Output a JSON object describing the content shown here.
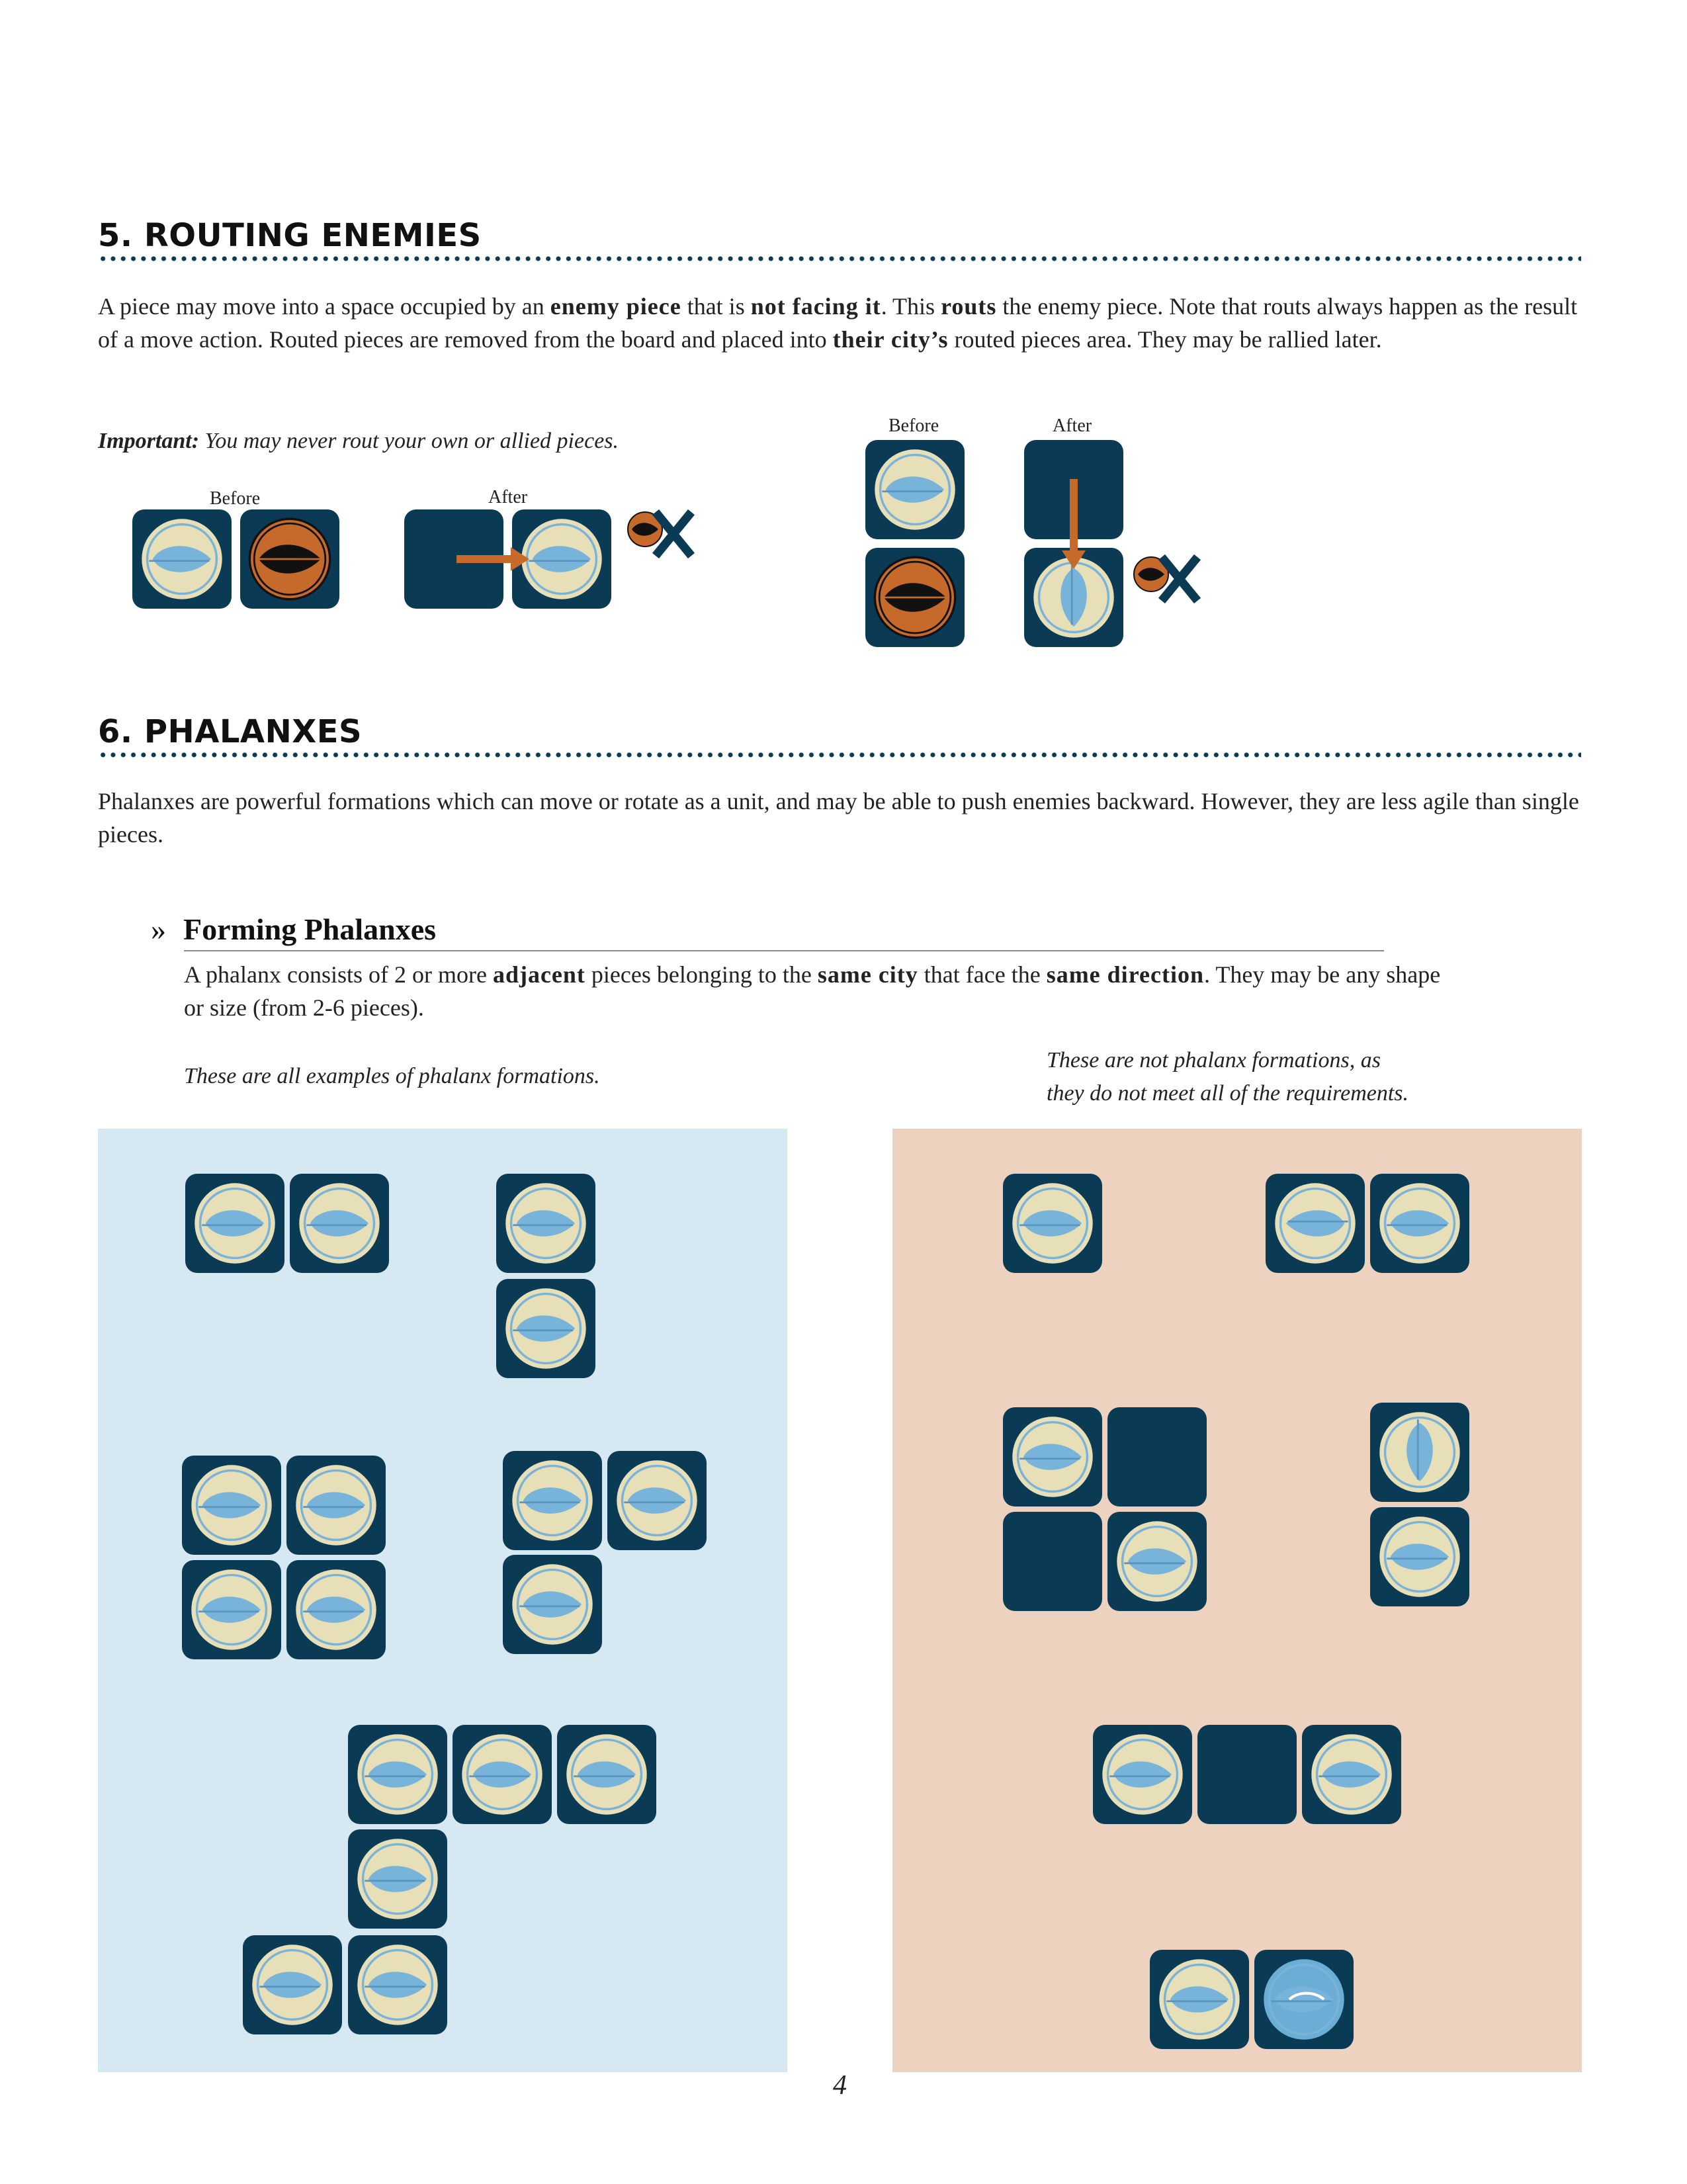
{
  "section5": {
    "heading": "5. ROUTING ENEMIES",
    "body": [
      {
        "t": "A piece may move into a space occupied by an "
      },
      {
        "t": "enemy piece",
        "b": true
      },
      {
        "t": " that is "
      },
      {
        "t": "not facing it",
        "b": true
      },
      {
        "t": ". This "
      },
      {
        "t": "routs",
        "b": true
      },
      {
        "t": " the enemy piece. Note that routs always happen as the result of a move action. Routed pieces are removed from the board and placed into "
      },
      {
        "t": "their city’s",
        "b": true
      },
      {
        "t": " routed pieces area. They may be rallied later."
      }
    ],
    "important_label": "Important:",
    "important_text": "You may never rout your own or allied pieces.",
    "fig1_before": "Before",
    "fig1_after": "After",
    "fig2_before": "Before",
    "fig2_after": "After"
  },
  "section6": {
    "heading": "6. PHALANXES",
    "body": "Phalanxes are powerful formations which can move or rotate as a unit, and may be able to push enemies backward. However, they are less agile than single pieces.",
    "sub_marker": "»",
    "subheading": "Forming Phalanxes",
    "sub_body": [
      {
        "t": "A phalanx consists of 2 or more "
      },
      {
        "t": "adjacent",
        "b": true
      },
      {
        "t": " pieces belonging to the "
      },
      {
        "t": "same city",
        "b": true
      },
      {
        "t": " that face the "
      },
      {
        "t": "same direction",
        "b": true
      },
      {
        "t": ". They may be any shape or size (from 2-6 pieces)."
      }
    ],
    "caption_left": "These are all examples of phalanx formations.",
    "caption_right_line1": "These are not phalanx formations, as",
    "caption_right_line2": "they do not meet all of the requirements."
  },
  "colors": {
    "tile": "#0b3a55",
    "token_face": "#e7dfb8",
    "token_ring": "#7bb3d8",
    "leaf": "#78b3d9",
    "enemy": "#c56a2b",
    "enemy_dark": "#111111",
    "arrow": "#c56a2b",
    "panel_left": "#d6e9f3",
    "panel_right": "#edd3bf",
    "highlight_token": "#6aaed6"
  },
  "page_number": "4"
}
